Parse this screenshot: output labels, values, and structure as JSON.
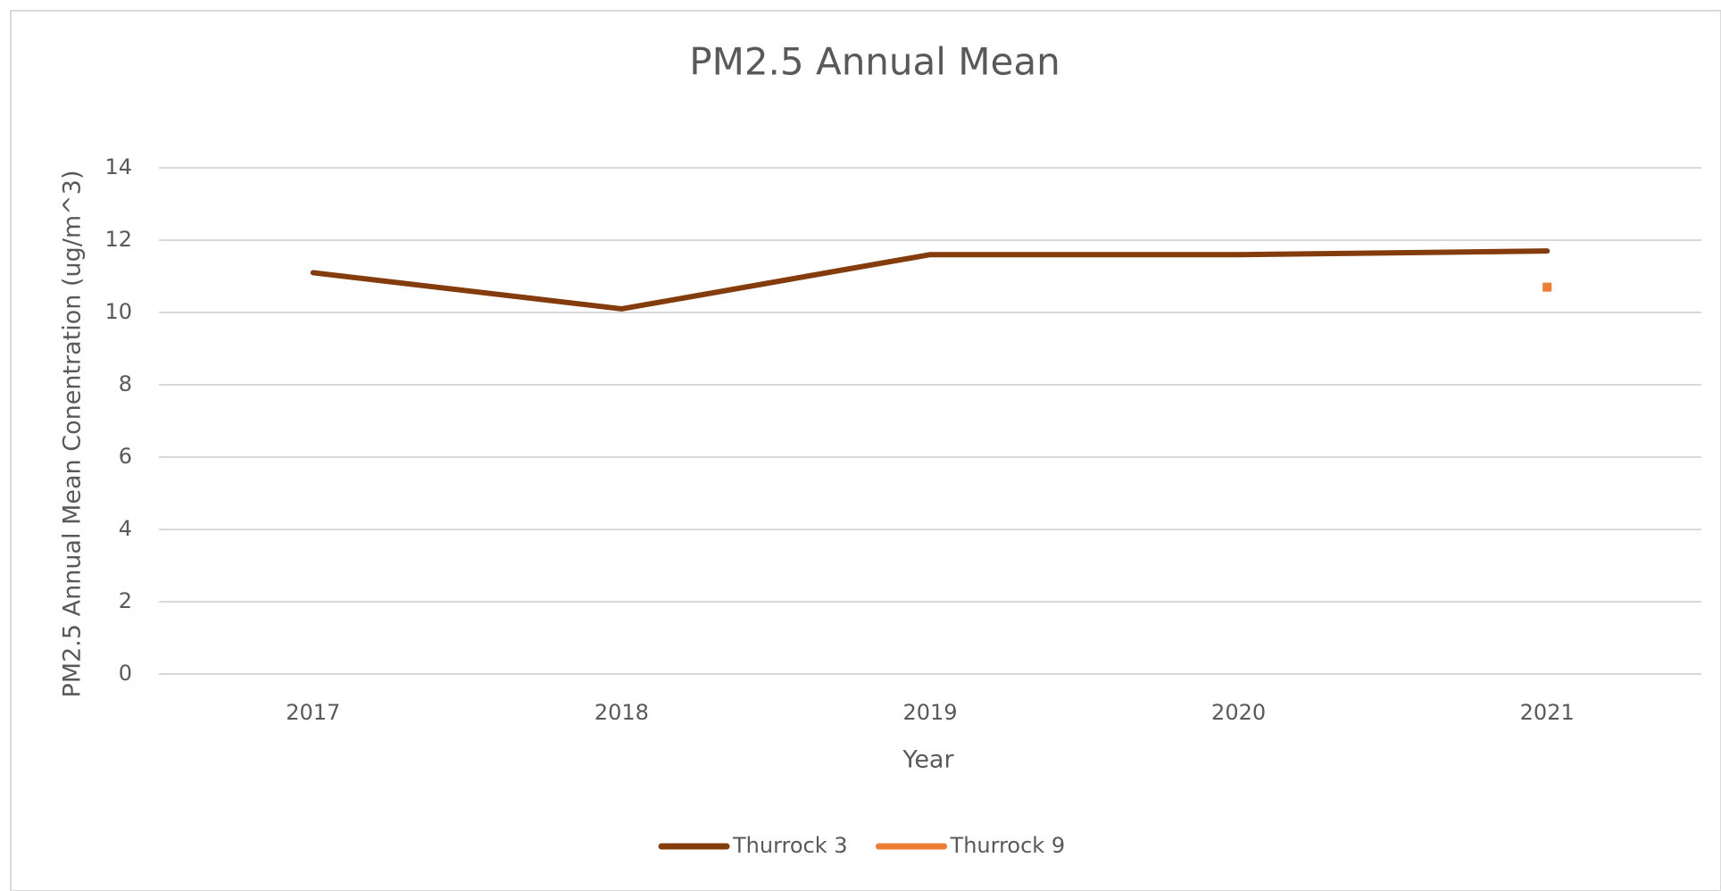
{
  "chart_data": {
    "type": "line",
    "title": "PM2.5 Annual Mean",
    "x_label": "Year",
    "y_label": "PM2.5 Annual Mean Conentration (ug/m^3)",
    "categories": [
      "2017",
      "2018",
      "2019",
      "2020",
      "2021"
    ],
    "series": [
      {
        "name": "Thurrock 3",
        "color": "#843c0c",
        "values": [
          11.1,
          10.1,
          11.6,
          11.6,
          11.7
        ]
      },
      {
        "name": "Thurrock 9",
        "color": "#ed7d31",
        "values": [
          null,
          null,
          null,
          null,
          10.7
        ]
      }
    ],
    "ylim": [
      0,
      14
    ],
    "yticks": [
      0,
      2,
      4,
      6,
      8,
      10,
      12,
      14
    ],
    "grid": true,
    "legend": "bottom"
  }
}
